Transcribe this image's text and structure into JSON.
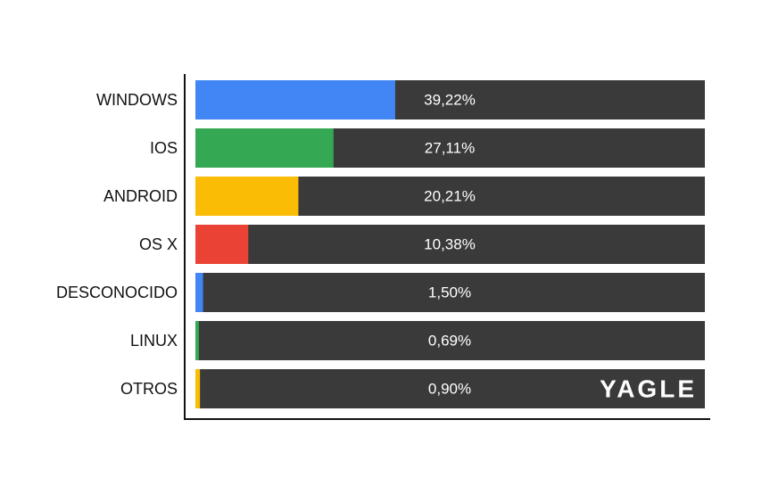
{
  "chart_data": {
    "type": "hbar",
    "categories": [
      "WINDOWS",
      "IOS",
      "ANDROID",
      "OS X",
      "DESCONOCIDO",
      "LINUX",
      "OTROS"
    ],
    "values": [
      39.22,
      27.11,
      20.21,
      10.38,
      1.5,
      0.69,
      0.9
    ],
    "value_labels": [
      "39,22%",
      "27,11%",
      "20,21%",
      "10,38%",
      "1,50%",
      "0,69%",
      "0,90%"
    ],
    "colors": [
      "#4285f4",
      "#34a853",
      "#fbbc05",
      "#ea4335",
      "#4285f4",
      "#34a853",
      "#fbbc05"
    ],
    "xlim": [
      0,
      100
    ],
    "watermark": "YAGLE"
  }
}
